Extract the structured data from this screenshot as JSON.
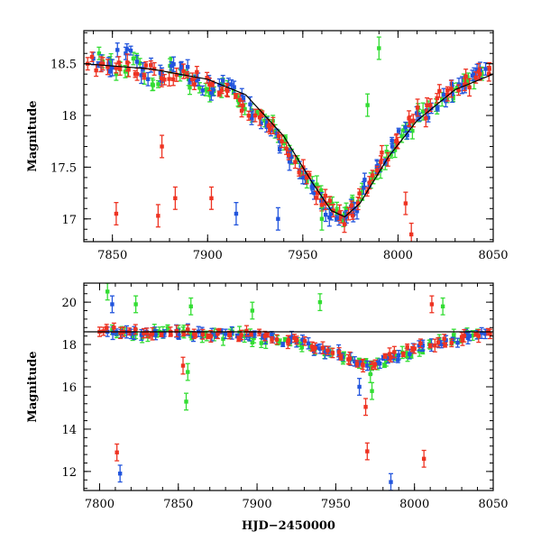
{
  "chart_data": [
    {
      "type": "scatter",
      "panel": "top",
      "title": "",
      "xlabel": "",
      "ylabel": "Magnitude",
      "xlim": [
        7835,
        8050
      ],
      "ylim": [
        18.82,
        16.78
      ],
      "y_inverted": true,
      "xticks": [
        7850,
        7900,
        7950,
        8000,
        8050
      ],
      "xtick_labels": [
        "7850",
        "7900",
        "7950",
        "8000",
        "8050"
      ],
      "yticks": [
        17,
        17.5,
        18,
        18.5
      ],
      "ytick_labels": [
        "17",
        "17.5",
        "18",
        "18.5"
      ],
      "grid": false,
      "error_bars": true,
      "model_curve": true,
      "series": [
        {
          "color": "#2255dd",
          "x": [
            7840,
            7848,
            7857,
            7866,
            7876,
            7886,
            7895,
            7903,
            7911,
            7918,
            7924,
            7931,
            7938,
            7944,
            7950,
            7956,
            7961,
            7965,
            7969,
            7973,
            7977,
            7982,
            7989,
            7997,
            8006,
            8015,
            8024,
            8032,
            8040,
            8046
          ],
          "y": [
            18.55,
            18.5,
            18.6,
            18.45,
            18.4,
            18.45,
            18.35,
            18.25,
            18.3,
            18.2,
            18.0,
            17.9,
            17.75,
            17.6,
            17.4,
            17.25,
            17.15,
            17.05,
            17.0,
            17.02,
            17.1,
            17.3,
            17.5,
            17.7,
            17.9,
            18.05,
            18.2,
            18.3,
            18.4,
            18.45
          ]
        },
        {
          "color": "#33dd33",
          "x": [
            7843,
            7852,
            7861,
            7871,
            7881,
            7890,
            7899,
            7908,
            7916,
            7923,
            7930,
            7937,
            7943,
            7949,
            7955,
            7960,
            7964,
            7968,
            7972,
            7976,
            7981,
            7987,
            7994,
            8002,
            8011,
            8020,
            8029,
            8037,
            8044
          ],
          "y": [
            18.6,
            18.4,
            18.55,
            18.3,
            18.5,
            18.35,
            18.25,
            18.3,
            18.15,
            18.05,
            17.95,
            17.8,
            17.65,
            17.45,
            17.35,
            17.2,
            17.15,
            17.05,
            17.05,
            17.15,
            17.25,
            17.4,
            17.65,
            17.8,
            18.0,
            18.1,
            18.25,
            18.35,
            18.4
          ]
        },
        {
          "color": "#ee3322",
          "x": [
            7837,
            7845,
            7854,
            7863,
            7872,
            7882,
            7892,
            7901,
            7910,
            7917,
            7925,
            7932,
            7939,
            7946,
            7952,
            7958,
            7962,
            7966,
            7970,
            7974,
            7979,
            7985,
            7991,
            7999,
            8008,
            8017,
            8026,
            8035,
            8043,
            8048
          ],
          "y": [
            18.5,
            18.5,
            18.45,
            18.4,
            18.45,
            18.35,
            18.35,
            18.3,
            18.25,
            18.15,
            18.0,
            17.9,
            17.75,
            17.55,
            17.4,
            17.25,
            17.15,
            17.08,
            17.02,
            17.05,
            17.15,
            17.35,
            17.55,
            17.75,
            17.95,
            18.1,
            18.2,
            18.3,
            18.4,
            18.45
          ]
        }
      ],
      "outliers": [
        {
          "color": "#ee3322",
          "x": 7852,
          "y": 17.05
        },
        {
          "color": "#ee3322",
          "x": 7874,
          "y": 17.03
        },
        {
          "color": "#ee3322",
          "x": 7876,
          "y": 17.7
        },
        {
          "color": "#ee3322",
          "x": 7883,
          "y": 17.2
        },
        {
          "color": "#ee3322",
          "x": 7902,
          "y": 17.2
        },
        {
          "color": "#2255dd",
          "x": 7915,
          "y": 17.05
        },
        {
          "color": "#2255dd",
          "x": 7937,
          "y": 17.0
        },
        {
          "color": "#33dd33",
          "x": 7960,
          "y": 17.0
        },
        {
          "color": "#ee3322",
          "x": 8004,
          "y": 17.15
        },
        {
          "color": "#ee3322",
          "x": 8007,
          "y": 16.85
        },
        {
          "color": "#33dd33",
          "x": 7984,
          "y": 18.1
        },
        {
          "color": "#33dd33",
          "x": 7990,
          "y": 18.65
        }
      ],
      "model": {
        "x": [
          7835,
          7870,
          7900,
          7920,
          7940,
          7955,
          7965,
          7972,
          7980,
          7995,
          8010,
          8030,
          8050
        ],
        "y": [
          18.5,
          18.45,
          18.35,
          18.2,
          17.8,
          17.35,
          17.08,
          17.02,
          17.15,
          17.6,
          17.95,
          18.25,
          18.4
        ]
      }
    },
    {
      "type": "scatter",
      "panel": "bottom",
      "title": "",
      "xlabel": "HJD−2450000",
      "ylabel": "Magnitude",
      "xlim": [
        7790,
        8050
      ],
      "ylim": [
        20.9,
        11.1
      ],
      "y_inverted": true,
      "xticks": [
        7800,
        7850,
        7900,
        7950,
        8000,
        8050
      ],
      "xtick_labels": [
        "7800",
        "7850",
        "7900",
        "7950",
        "8000",
        "8050"
      ],
      "yticks": [
        12,
        14,
        16,
        18,
        20
      ],
      "ytick_labels": [
        "12",
        "14",
        "16",
        "18",
        "20"
      ],
      "reference_line_y": 18.6,
      "grid": false,
      "error_bars": true,
      "series": [
        {
          "color": "#2255dd",
          "x": [
            7805,
            7820,
            7835,
            7850,
            7865,
            7880,
            7895,
            7910,
            7925,
            7940,
            7952,
            7962,
            7970,
            7978,
            7990,
            8005,
            8020,
            8035,
            8045
          ],
          "y": [
            18.6,
            18.5,
            18.6,
            18.5,
            18.5,
            18.5,
            18.4,
            18.3,
            18.1,
            17.8,
            17.5,
            17.2,
            17.0,
            17.1,
            17.5,
            17.9,
            18.2,
            18.4,
            18.5
          ]
        },
        {
          "color": "#33dd33",
          "x": [
            7808,
            7823,
            7838,
            7853,
            7868,
            7883,
            7898,
            7913,
            7928,
            7943,
            7955,
            7965,
            7973,
            7982,
            7995,
            8010,
            8025,
            8040
          ],
          "y": [
            18.7,
            18.5,
            18.6,
            18.6,
            18.4,
            18.5,
            18.3,
            18.2,
            18.0,
            17.7,
            17.4,
            17.1,
            17.0,
            17.2,
            17.6,
            18.0,
            18.3,
            18.5
          ]
        },
        {
          "color": "#ee3322",
          "x": [
            7800,
            7815,
            7830,
            7845,
            7860,
            7875,
            7890,
            7905,
            7920,
            7935,
            7948,
            7958,
            7967,
            7975,
            7985,
            8000,
            8015,
            8030,
            8048
          ],
          "y": [
            18.6,
            18.6,
            18.55,
            18.6,
            18.5,
            18.5,
            18.45,
            18.4,
            18.2,
            17.9,
            17.6,
            17.3,
            17.05,
            17.05,
            17.4,
            17.8,
            18.1,
            18.35,
            18.5
          ]
        }
      ],
      "outliers": [
        {
          "color": "#2255dd",
          "x": 7813,
          "y": 11.9
        },
        {
          "color": "#ee3322",
          "x": 7811,
          "y": 12.9
        },
        {
          "color": "#2255dd",
          "x": 7985,
          "y": 11.5
        },
        {
          "color": "#ee3322",
          "x": 8006,
          "y": 12.6
        },
        {
          "color": "#ee3322",
          "x": 7970,
          "y": 12.95
        },
        {
          "color": "#ee3322",
          "x": 7969,
          "y": 15.05
        },
        {
          "color": "#33dd33",
          "x": 7855,
          "y": 15.3
        },
        {
          "color": "#ee3322",
          "x": 7853,
          "y": 17.0
        },
        {
          "color": "#33dd33",
          "x": 7856,
          "y": 16.7
        },
        {
          "color": "#2255dd",
          "x": 7965,
          "y": 16.0
        },
        {
          "color": "#33dd33",
          "x": 7973,
          "y": 15.8
        },
        {
          "color": "#33dd33",
          "x": 7972,
          "y": 16.6
        },
        {
          "color": "#2255dd",
          "x": 7808,
          "y": 19.9
        },
        {
          "color": "#33dd33",
          "x": 7805,
          "y": 20.5
        },
        {
          "color": "#33dd33",
          "x": 7823,
          "y": 19.9
        },
        {
          "color": "#33dd33",
          "x": 7858,
          "y": 19.8
        },
        {
          "color": "#33dd33",
          "x": 7897,
          "y": 19.6
        },
        {
          "color": "#33dd33",
          "x": 7940,
          "y": 20.0
        },
        {
          "color": "#ee3322",
          "x": 8011,
          "y": 19.9
        },
        {
          "color": "#33dd33",
          "x": 8018,
          "y": 19.8
        }
      ]
    }
  ]
}
